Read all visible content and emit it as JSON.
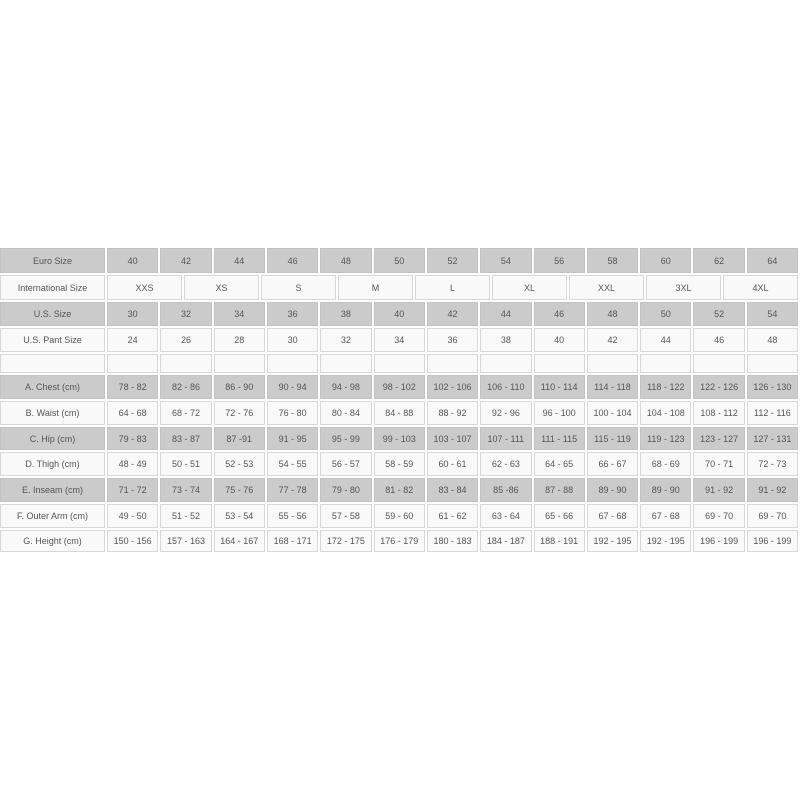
{
  "table": {
    "rows": [
      {
        "label": "Euro Size",
        "style": "gray",
        "values": [
          "40",
          "42",
          "44",
          "46",
          "48",
          "50",
          "52",
          "54",
          "56",
          "58",
          "60",
          "62",
          "64"
        ]
      },
      {
        "label": "International Size",
        "style": "white",
        "values": [
          "XXS",
          "XS",
          "S",
          "M",
          "L",
          "XL",
          "XXL",
          "3XL",
          "4XL"
        ]
      },
      {
        "label": "U.S. Size",
        "style": "gray",
        "values": [
          "30",
          "32",
          "34",
          "36",
          "38",
          "40",
          "42",
          "44",
          "46",
          "48",
          "50",
          "52",
          "54"
        ]
      },
      {
        "label": "U.S. Pant Size",
        "style": "white",
        "values": [
          "24",
          "26",
          "28",
          "30",
          "32",
          "34",
          "36",
          "38",
          "40",
          "42",
          "44",
          "46",
          "48"
        ]
      },
      {
        "label": "",
        "style": "white",
        "values": [
          "",
          "",
          "",
          "",
          "",
          "",
          "",
          "",
          "",
          "",
          "",
          "",
          ""
        ]
      },
      {
        "label": "A. Chest (cm)",
        "style": "gray",
        "values": [
          "78 - 82",
          "82 - 86",
          "86 - 90",
          "90 - 94",
          "94 - 98",
          "98 - 102",
          "102 - 106",
          "106 - 110",
          "110 - 114",
          "114 - 118",
          "118 - 122",
          "122 - 126",
          "126 - 130"
        ]
      },
      {
        "label": "B. Waist (cm)",
        "style": "white",
        "values": [
          "64 - 68",
          "68 - 72",
          "72 - 76",
          "76 - 80",
          "80 - 84",
          "84 - 88",
          "88 - 92",
          "92 - 96",
          "96 - 100",
          "100 - 104",
          "104 - 108",
          "108 - 112",
          "112 - 116"
        ]
      },
      {
        "label": "C. Hip (cm)",
        "style": "gray",
        "values": [
          "79 - 83",
          "83 - 87",
          "87 -91",
          "91 - 95",
          "95 - 99",
          "99 - 103",
          "103 - 107",
          "107 - 111",
          "111 - 115",
          "115 - 119",
          "119 - 123",
          "123 - 127",
          "127 - 131"
        ]
      },
      {
        "label": "D. Thigh (cm)",
        "style": "white",
        "values": [
          "48 - 49",
          "50 - 51",
          "52 - 53",
          "54 - 55",
          "56 - 57",
          "58 - 59",
          "60 - 61",
          "62 - 63",
          "64 - 65",
          "66 - 67",
          "68 - 69",
          "70 - 71",
          "72 - 73"
        ]
      },
      {
        "label": "E. Inseam (cm)",
        "style": "gray",
        "values": [
          "71 - 72",
          "73 - 74",
          "75 - 76",
          "77 - 78",
          "79 - 80",
          "81 - 82",
          "83 - 84",
          "85 -86",
          "87 - 88",
          "89 - 90",
          "89 - 90",
          "91 - 92",
          "91 - 92"
        ]
      },
      {
        "label": "F. Outer Arm (cm)",
        "style": "white",
        "values": [
          "49 - 50",
          "51 - 52",
          "53 - 54",
          "55 - 56",
          "57 - 58",
          "59 - 60",
          "61 - 62",
          "63 - 64",
          "65 - 66",
          "67 - 68",
          "67 - 68",
          "69 - 70",
          "69 - 70"
        ]
      },
      {
        "label": "G. Height (cm)",
        "style": "white",
        "values": [
          "150 - 156",
          "157 - 163",
          "164 - 167",
          "168 - 171",
          "172 - 175",
          "176 - 179",
          "180 - 183",
          "184 - 187",
          "188 - 191",
          "192 - 195",
          "192 - 195",
          "196 - 199",
          "196 - 199"
        ]
      }
    ]
  }
}
